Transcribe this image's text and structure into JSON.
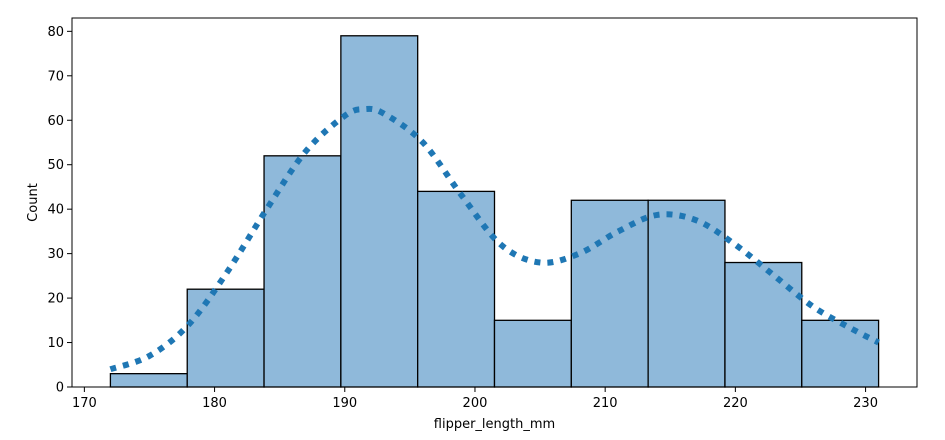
{
  "chart_data": {
    "type": "bar",
    "subtype": "histogram-with-kde",
    "title": "",
    "xlabel": "flipper_length_mm",
    "ylabel": "Count",
    "xlim": [
      169.05,
      233.95
    ],
    "ylim": [
      0,
      83
    ],
    "xticks": [
      170,
      180,
      190,
      200,
      210,
      220,
      230
    ],
    "yticks": [
      0,
      10,
      20,
      30,
      40,
      50,
      60,
      70,
      80
    ],
    "bins": [
      {
        "x0": 172.0,
        "x1": 177.9,
        "count": 3
      },
      {
        "x0": 177.9,
        "x1": 183.8,
        "count": 22
      },
      {
        "x0": 183.8,
        "x1": 189.7,
        "count": 52
      },
      {
        "x0": 189.7,
        "x1": 195.6,
        "count": 79
      },
      {
        "x0": 195.6,
        "x1": 201.5,
        "count": 44
      },
      {
        "x0": 201.5,
        "x1": 207.4,
        "count": 15
      },
      {
        "x0": 207.4,
        "x1": 213.3,
        "count": 42
      },
      {
        "x0": 213.3,
        "x1": 219.2,
        "count": 42
      },
      {
        "x0": 219.2,
        "x1": 225.1,
        "count": 28
      },
      {
        "x0": 225.1,
        "x1": 231.0,
        "count": 15
      }
    ],
    "kde": {
      "x": [
        172,
        175,
        178,
        181,
        184,
        187,
        190,
        191.5,
        193,
        196,
        199,
        202,
        205,
        208,
        211,
        214,
        217,
        220,
        223,
        226,
        229,
        231
      ],
      "y": [
        4,
        7,
        14,
        26,
        40,
        53,
        61,
        62.5,
        61.5,
        55,
        43,
        32,
        28,
        30,
        35,
        38.7,
        37.5,
        32,
        25,
        18,
        13,
        10
      ]
    },
    "grid": false,
    "legend": "none",
    "colors": {
      "bar_fill": "#8fb9da",
      "bar_edge": "#000000",
      "kde_line": "#1f77b4",
      "axis": "#000000",
      "background": "#ffffff"
    }
  }
}
